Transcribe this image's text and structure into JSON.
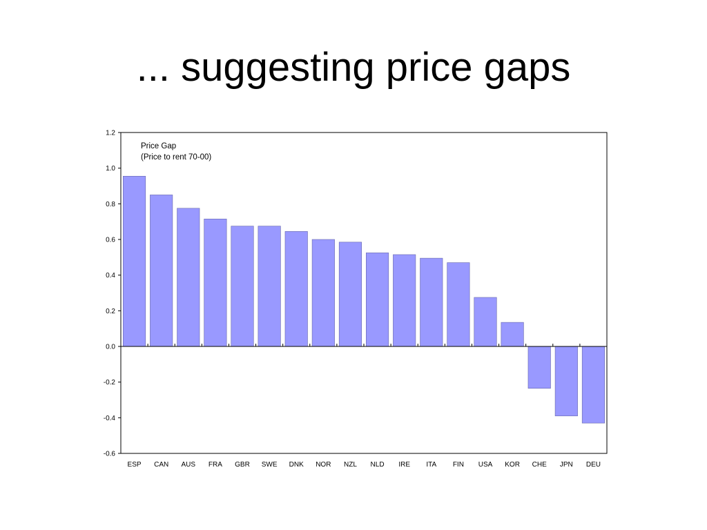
{
  "slide": {
    "title": "... suggesting price gaps"
  },
  "chart_data": {
    "type": "bar",
    "annotation": [
      "Price Gap",
      "(Price to rent 70-00)"
    ],
    "categories": [
      "ESP",
      "CAN",
      "AUS",
      "FRA",
      "GBR",
      "SWE",
      "DNK",
      "NOR",
      "NZL",
      "NLD",
      "IRE",
      "ITA",
      "FIN",
      "USA",
      "KOR",
      "CHE",
      "JPN",
      "DEU"
    ],
    "values": [
      0.955,
      0.85,
      0.775,
      0.715,
      0.675,
      0.675,
      0.645,
      0.6,
      0.585,
      0.525,
      0.515,
      0.495,
      0.47,
      0.275,
      0.135,
      -0.235,
      -0.39,
      -0.43
    ],
    "ylim": [
      -0.6,
      1.2
    ],
    "yticks": [
      "1.2",
      "1.0",
      "0.8",
      "0.6",
      "0.4",
      "0.2",
      "0.0",
      "-0.2",
      "-0.4",
      "-0.6"
    ],
    "ytick_values": [
      1.2,
      1.0,
      0.8,
      0.6,
      0.4,
      0.2,
      0.0,
      -0.2,
      -0.4,
      -0.6
    ],
    "xlabel": "",
    "ylabel": "",
    "grid": false,
    "bar_color": "#9999ff",
    "bar_edge_color": "#6666aa"
  }
}
